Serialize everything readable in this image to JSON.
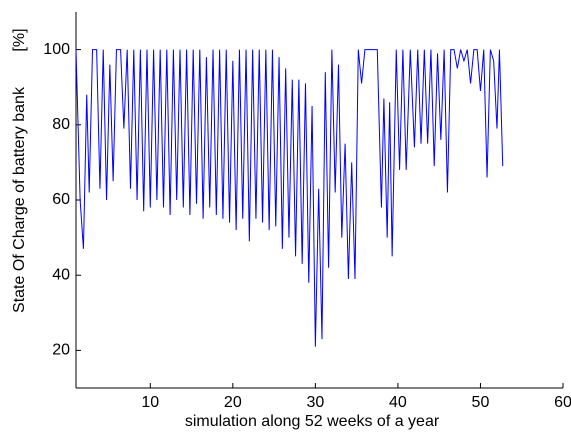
{
  "chart_data": {
    "type": "line",
    "xlabel": "simulation along 52 weeks of a year",
    "ylabel": "State Of Charge of battery bank",
    "yunit": "[%]",
    "xlim": [
      1,
      60
    ],
    "ylim": [
      10,
      110
    ],
    "xticks": [
      10,
      20,
      30,
      40,
      50,
      60
    ],
    "yticks": [
      20,
      40,
      60,
      80,
      100
    ],
    "grid": false,
    "x": [
      1,
      1.5,
      1.9,
      2.3,
      2.6,
      3.0,
      3.5,
      3.9,
      4.3,
      4.7,
      5.1,
      5.5,
      5.9,
      6.4,
      6.8,
      7.2,
      7.6,
      8.0,
      8.4,
      8.8,
      9.2,
      9.6,
      10.0,
      10.4,
      10.8,
      11.2,
      11.6,
      12.0,
      12.4,
      12.8,
      13.2,
      13.6,
      14.0,
      14.4,
      14.8,
      15.2,
      15.6,
      16.0,
      16.4,
      16.8,
      17.2,
      17.6,
      18.0,
      18.4,
      18.8,
      19.2,
      19.6,
      20.0,
      20.4,
      20.8,
      21.2,
      21.6,
      22.0,
      22.4,
      22.8,
      23.2,
      23.6,
      24.0,
      24.4,
      24.8,
      25.2,
      25.6,
      26.0,
      26.4,
      26.8,
      27.2,
      27.6,
      28.0,
      28.4,
      28.8,
      29.2,
      29.6,
      30.0,
      30.4,
      30.8,
      31.2,
      31.6,
      32.0,
      32.4,
      32.8,
      33.2,
      33.6,
      34.0,
      34.4,
      34.8,
      35.2,
      35.6,
      36.0,
      37.0,
      37.5,
      38.0,
      38.3,
      38.7,
      39.0,
      39.3,
      39.8,
      40.2,
      40.6,
      41.0,
      41.5,
      42.0,
      42.4,
      42.8,
      43.2,
      43.6,
      44.0,
      44.4,
      44.8,
      45.2,
      45.6,
      46.0,
      46.4,
      46.8,
      47.2,
      47.6,
      48.0,
      48.4,
      48.8,
      49.2,
      49.6,
      50.0,
      50.4,
      50.8,
      51.2,
      51.6,
      52.0,
      52.3,
      52.7
    ],
    "series": [
      {
        "name": "State Of Charge",
        "color": "#0000ff",
        "values": [
          100,
          60,
          47,
          88,
          62,
          100,
          100,
          63,
          100,
          60,
          96,
          65,
          100,
          100,
          79,
          100,
          63,
          100,
          60,
          100,
          57,
          100,
          58,
          100,
          60,
          100,
          58,
          100,
          56,
          100,
          60,
          100,
          58,
          100,
          56,
          100,
          59,
          100,
          55,
          98,
          58,
          100,
          56,
          100,
          55,
          100,
          54,
          97,
          52,
          100,
          55,
          100,
          49,
          100,
          55,
          100,
          54,
          100,
          52,
          100,
          53,
          98,
          47,
          95,
          50,
          92,
          45,
          92,
          43,
          91,
          38,
          85,
          21,
          63,
          23,
          94,
          42,
          100,
          62,
          96,
          50,
          75,
          39,
          70,
          39,
          100,
          91,
          100,
          100,
          100,
          58,
          87,
          50,
          86,
          45,
          100,
          68,
          100,
          68,
          100,
          74,
          100,
          75,
          100,
          75,
          100,
          69,
          99,
          76,
          100,
          62,
          100,
          100,
          95,
          100,
          97,
          100,
          91,
          100,
          100,
          89,
          100,
          66,
          100,
          97,
          79,
          100,
          69
        ]
      }
    ]
  }
}
